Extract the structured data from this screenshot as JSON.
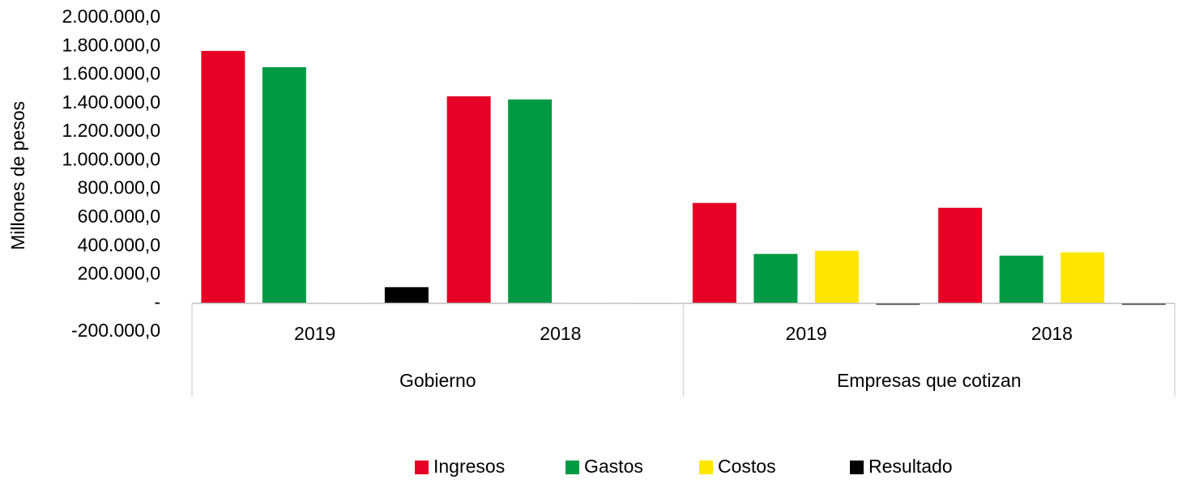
{
  "chart_data": {
    "type": "bar",
    "y_label": "Millones de pesos",
    "categories": [
      "2019",
      "2018",
      "2019",
      "2018"
    ],
    "groups": [
      "Gobierno",
      "Empresas que  cotizan"
    ],
    "series": [
      {
        "name": "Ingresos",
        "color": "#e60026",
        "values": [
          1768000,
          1450000,
          703000,
          669000
        ]
      },
      {
        "name": "Gastos",
        "color": "#009a44",
        "values": [
          1654000,
          1428000,
          346000,
          334000
        ]
      },
      {
        "name": "Costos",
        "color": "#ffe600",
        "values": [
          4000,
          4000,
          368000,
          357000
        ]
      },
      {
        "name": "Resultado",
        "color": "#000000",
        "values": [
          113000,
          4000,
          -10000,
          -10000
        ]
      }
    ],
    "ylim": [
      -200000,
      2000000
    ],
    "yticks": [
      {
        "value": -200000,
        "label": "-200.000,0"
      },
      {
        "value": 0,
        "label": "-"
      },
      {
        "value": 200000,
        "label": "200.000,0"
      },
      {
        "value": 400000,
        "label": "400.000,0"
      },
      {
        "value": 600000,
        "label": "600.000,0"
      },
      {
        "value": 800000,
        "label": "800.000,0"
      },
      {
        "value": 1000000,
        "label": "1.000.000,0"
      },
      {
        "value": 1200000,
        "label": "1.200.000,0"
      },
      {
        "value": 1400000,
        "label": "1.400.000,0"
      },
      {
        "value": 1600000,
        "label": "1.600.000,0"
      },
      {
        "value": 1800000,
        "label": "1.800.000,0"
      },
      {
        "value": 2000000,
        "label": "2.000.000,0"
      }
    ],
    "legend": "bottom"
  }
}
